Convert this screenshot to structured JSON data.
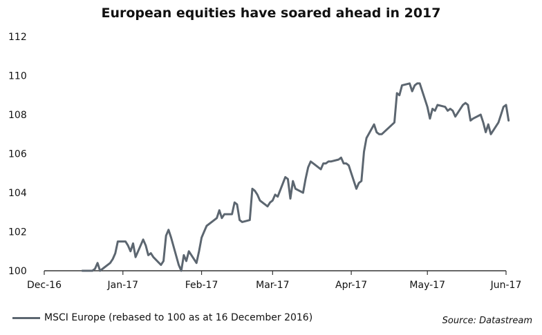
{
  "chart_data": {
    "type": "line",
    "title": "European equities have soared ahead in 2017",
    "xlabel": "",
    "ylabel": "",
    "ylim": [
      100,
      112
    ],
    "yticks": [
      100,
      102,
      104,
      106,
      108,
      110,
      112
    ],
    "xlim": [
      "2016-12-01",
      "2017-06-01"
    ],
    "xticks": [
      {
        "date": "2016-12-01",
        "label": "Dec-16"
      },
      {
        "date": "2017-01-01",
        "label": "Jan-17"
      },
      {
        "date": "2017-02-01",
        "label": "Feb-17"
      },
      {
        "date": "2017-03-01",
        "label": "Mar-17"
      },
      {
        "date": "2017-04-01",
        "label": "Apr-17"
      },
      {
        "date": "2017-05-01",
        "label": "May-17"
      },
      {
        "date": "2017-06-01",
        "label": "Jun-17"
      }
    ],
    "grid": false,
    "legend_position": "bottom-left",
    "series": [
      {
        "name": "MSCI Europe (rebased to 100 as at 16 December 2016)",
        "color": "#5c6670",
        "x": [
          "2016-12-16",
          "2016-12-19",
          "2016-12-20",
          "2016-12-21",
          "2016-12-22",
          "2016-12-23",
          "2016-12-27",
          "2016-12-28",
          "2016-12-29",
          "2016-12-30",
          "2017-01-02",
          "2017-01-03",
          "2017-01-04",
          "2017-01-05",
          "2017-01-06",
          "2017-01-09",
          "2017-01-10",
          "2017-01-11",
          "2017-01-12",
          "2017-01-13",
          "2017-01-16",
          "2017-01-17",
          "2017-01-18",
          "2017-01-19",
          "2017-01-20",
          "2017-01-23",
          "2017-01-24",
          "2017-01-25",
          "2017-01-26",
          "2017-01-27",
          "2017-01-30",
          "2017-01-31",
          "2017-02-01",
          "2017-02-02",
          "2017-02-03",
          "2017-02-06",
          "2017-02-07",
          "2017-02-08",
          "2017-02-09",
          "2017-02-10",
          "2017-02-13",
          "2017-02-14",
          "2017-02-15",
          "2017-02-16",
          "2017-02-17",
          "2017-02-20",
          "2017-02-21",
          "2017-02-22",
          "2017-02-23",
          "2017-02-24",
          "2017-02-27",
          "2017-02-28",
          "2017-03-01",
          "2017-03-02",
          "2017-03-03",
          "2017-03-06",
          "2017-03-07",
          "2017-03-08",
          "2017-03-09",
          "2017-03-10",
          "2017-03-13",
          "2017-03-14",
          "2017-03-15",
          "2017-03-16",
          "2017-03-17",
          "2017-03-20",
          "2017-03-21",
          "2017-03-22",
          "2017-03-23",
          "2017-03-24",
          "2017-03-27",
          "2017-03-28",
          "2017-03-29",
          "2017-03-30",
          "2017-03-31",
          "2017-04-03",
          "2017-04-04",
          "2017-04-05",
          "2017-04-06",
          "2017-04-07",
          "2017-04-10",
          "2017-04-11",
          "2017-04-12",
          "2017-04-13",
          "2017-04-18",
          "2017-04-19",
          "2017-04-20",
          "2017-04-21",
          "2017-04-24",
          "2017-04-25",
          "2017-04-26",
          "2017-04-27",
          "2017-04-28",
          "2017-05-01",
          "2017-05-02",
          "2017-05-03",
          "2017-05-04",
          "2017-05-05",
          "2017-05-08",
          "2017-05-09",
          "2017-05-10",
          "2017-05-11",
          "2017-05-12",
          "2017-05-15",
          "2017-05-16",
          "2017-05-17",
          "2017-05-18",
          "2017-05-19",
          "2017-05-22",
          "2017-05-23",
          "2017-05-24",
          "2017-05-25",
          "2017-05-26",
          "2017-05-29",
          "2017-05-30",
          "2017-05-31",
          "2017-06-01",
          "2017-06-02"
        ],
        "values": [
          100.0,
          100.0,
          100.0,
          100.1,
          100.4,
          100.0,
          100.4,
          100.6,
          100.9,
          101.5,
          101.5,
          101.3,
          101.0,
          101.4,
          100.7,
          101.6,
          101.3,
          100.8,
          100.9,
          100.7,
          100.3,
          100.5,
          101.8,
          102.1,
          101.7,
          100.3,
          100.0,
          100.8,
          100.5,
          101.0,
          100.4,
          101.0,
          101.7,
          102.0,
          102.3,
          102.6,
          102.7,
          103.1,
          102.7,
          102.9,
          102.9,
          103.5,
          103.4,
          102.6,
          102.5,
          102.6,
          104.2,
          104.1,
          103.9,
          103.6,
          103.3,
          103.5,
          103.6,
          103.9,
          103.8,
          104.8,
          104.7,
          103.7,
          104.6,
          104.2,
          104.0,
          104.7,
          105.3,
          105.6,
          105.5,
          105.2,
          105.5,
          105.5,
          105.6,
          105.6,
          105.7,
          105.8,
          105.5,
          105.5,
          105.4,
          104.2,
          104.5,
          104.6,
          106.1,
          106.8,
          107.5,
          107.1,
          107.0,
          107.0,
          107.6,
          109.1,
          109.0,
          109.5,
          109.6,
          109.2,
          109.5,
          109.6,
          109.6,
          108.4,
          107.8,
          108.3,
          108.2,
          108.5,
          108.4,
          108.2,
          108.3,
          108.2,
          107.9,
          108.5,
          108.6,
          108.5,
          107.7,
          107.8,
          108.0,
          107.6,
          107.1,
          107.5,
          107.0,
          107.6,
          108.0,
          108.4,
          108.5,
          107.7
        ]
      }
    ],
    "source": "Source: Datastream"
  }
}
